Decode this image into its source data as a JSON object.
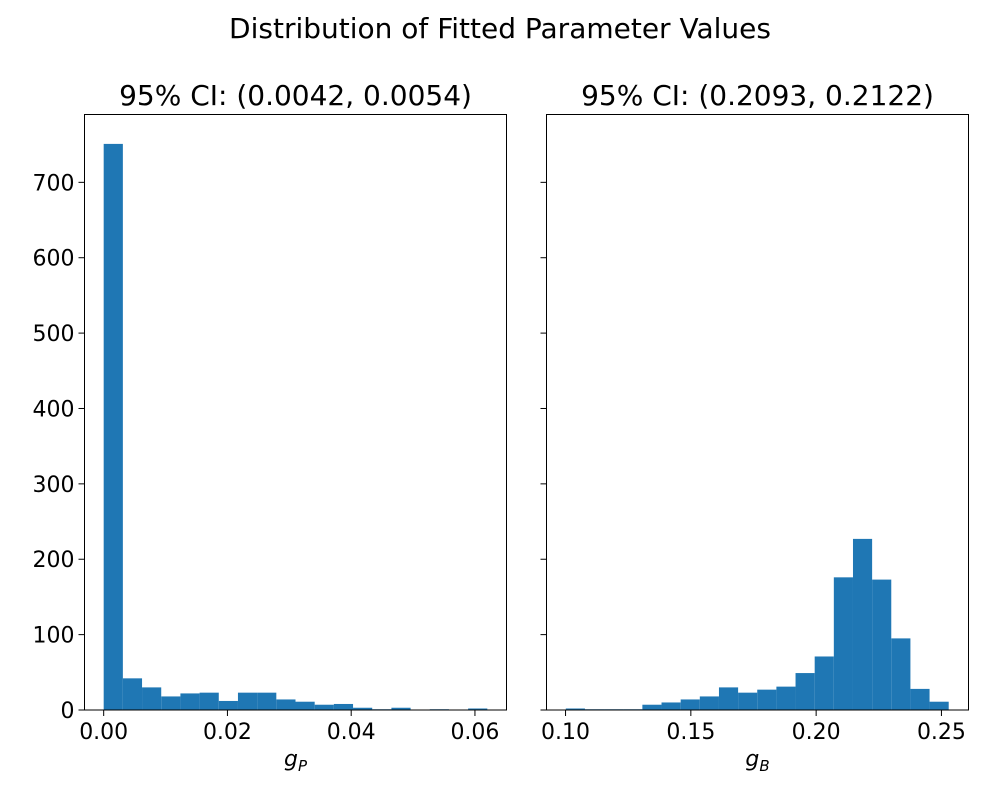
{
  "figure": {
    "suptitle": "Distribution of Fitted Parameter Values"
  },
  "chart_data": [
    {
      "type": "bar",
      "title": "95% CI: (0.0042, 0.0054)",
      "xlabel": {
        "base": "g",
        "sub": "P"
      },
      "ylabel": "",
      "xlim": [
        -0.0031,
        0.0651
      ],
      "ylim": [
        0,
        790
      ],
      "xticks": [
        0.0,
        0.02,
        0.04,
        0.06
      ],
      "xtick_labels": [
        "0.00",
        "0.02",
        "0.04",
        "0.06"
      ],
      "yticks": [
        0,
        100,
        200,
        300,
        400,
        500,
        600,
        700
      ],
      "ytick_labels": [
        "0",
        "100",
        "200",
        "300",
        "400",
        "500",
        "600",
        "700"
      ],
      "grid": false,
      "bins": {
        "start": 0.0,
        "width": 0.0031
      },
      "values": [
        751,
        42,
        30,
        18,
        22,
        23,
        12,
        23,
        23,
        14,
        11,
        7,
        8,
        3,
        1,
        3,
        0,
        1,
        0,
        2
      ]
    },
    {
      "type": "bar",
      "title": "95% CI: (0.2093, 0.2122)",
      "xlabel": {
        "base": "g",
        "sub": "B"
      },
      "ylabel": "",
      "xlim": [
        0.0924,
        0.2608
      ],
      "ylim": [
        0,
        790
      ],
      "xticks": [
        0.1,
        0.15,
        0.2,
        0.25
      ],
      "xtick_labels": [
        "0.10",
        "0.15",
        "0.20",
        "0.25"
      ],
      "yticks": [
        0,
        100,
        200,
        300,
        400,
        500,
        600,
        700
      ],
      "ytick_labels": [
        "",
        "",
        "",
        "",
        "",
        "",
        "",
        ""
      ],
      "grid": false,
      "bins": {
        "start": 0.1001,
        "width": 0.00764
      },
      "values": [
        2,
        1,
        1,
        1,
        7,
        10,
        14,
        18,
        30,
        23,
        27,
        31,
        49,
        71,
        176,
        227,
        173,
        95,
        28,
        11
      ]
    }
  ]
}
